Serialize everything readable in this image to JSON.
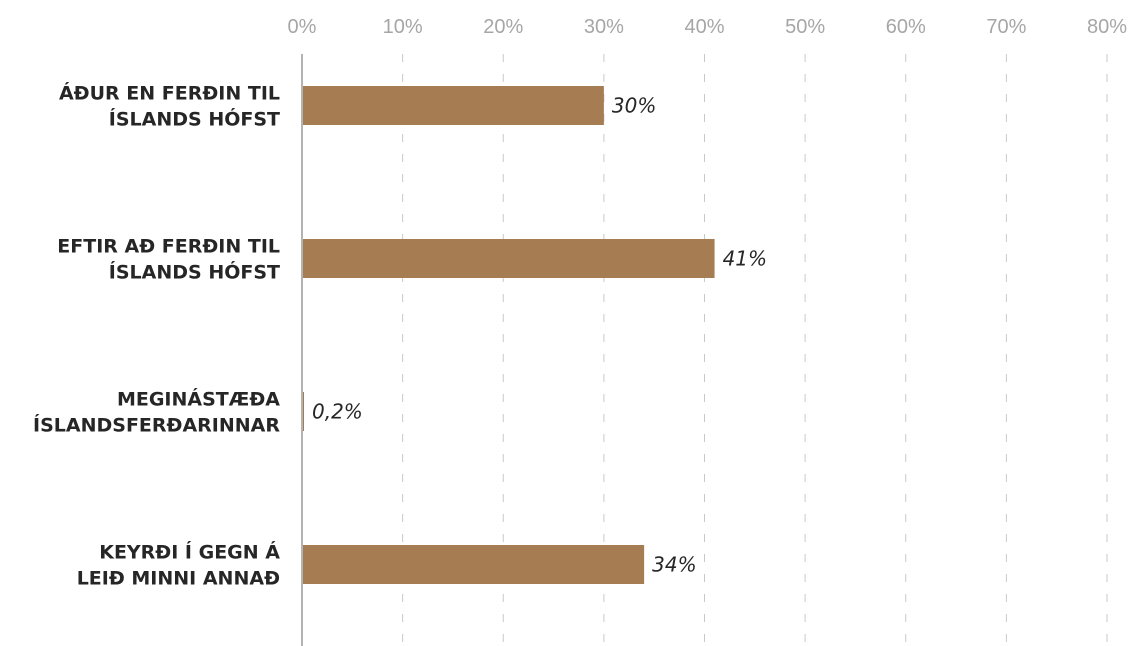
{
  "chart_data": {
    "type": "bar",
    "orientation": "horizontal",
    "categories": [
      [
        "ÁÐUR EN FERÐIN TIL",
        "ÍSLANDS HÓFST"
      ],
      [
        "EFTIR AÐ FERÐIN TIL",
        "ÍSLANDS HÓFST"
      ],
      [
        "MEGINÁSTÆÐA",
        "ÍSLANDSFERÐARINNAR"
      ],
      [
        "KEYRÐI Í GEGN Á",
        "LEIÐ MINNI ANNAÐ"
      ]
    ],
    "values": [
      30,
      41,
      0.2,
      34
    ],
    "data_labels": [
      "30%",
      "41%",
      "0,2%",
      "34%"
    ],
    "x_ticks": [
      "0%",
      "10%",
      "20%",
      "30%",
      "40%",
      "50%",
      "60%",
      "70%",
      "80%"
    ],
    "x_tick_values": [
      0,
      10,
      20,
      30,
      40,
      50,
      60,
      70,
      80
    ],
    "xlim": [
      0,
      80
    ],
    "axis_position": "top",
    "grid": true,
    "legend": false,
    "colors": {
      "bar": "#a67c52",
      "grid": "#c9c9c9",
      "axis": "#b3b3b3",
      "tick_text": "#a6a6a6",
      "label_text": "#262626"
    }
  }
}
